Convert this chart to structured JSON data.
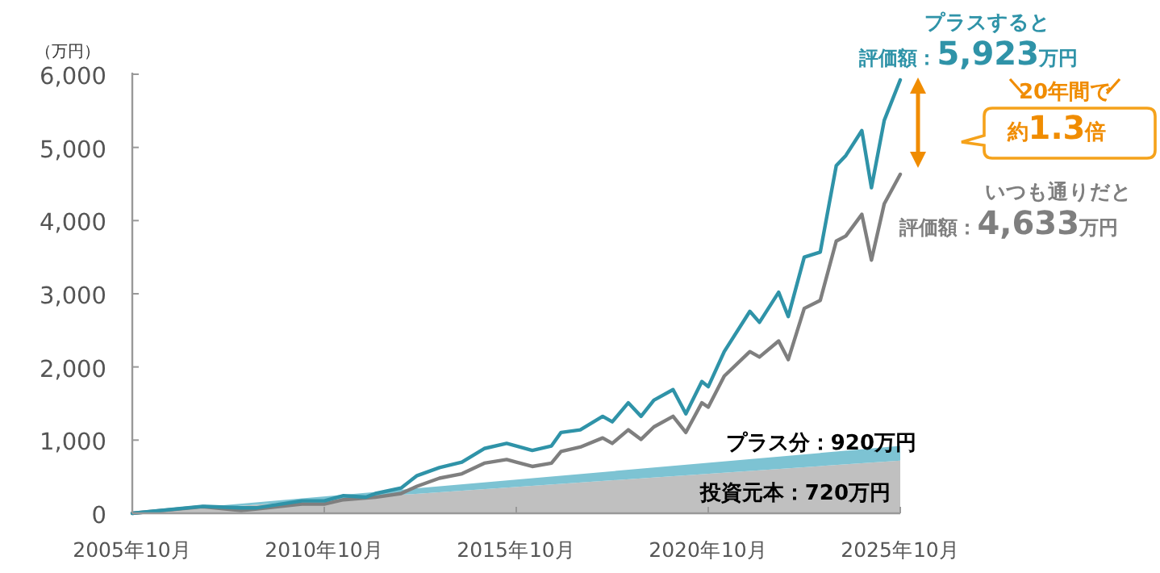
{
  "chart_data": {
    "type": "line",
    "ylabel": "（万円）",
    "stacked": true,
    "xlim": [
      "2005-10",
      "2025-10"
    ],
    "xticks": [
      {
        "value": "2005-10",
        "label": "2005年10月"
      },
      {
        "value": "2010-10",
        "label": "2010年10月"
      },
      {
        "value": "2015-10",
        "label": "2015年10月"
      },
      {
        "value": "2020-10",
        "label": "2020年10月"
      },
      {
        "value": "2025-10",
        "label": "2025年10月"
      }
    ],
    "ylim": [
      0,
      6000
    ],
    "yticks": [
      {
        "value": 0,
        "label": "0"
      },
      {
        "value": 1000,
        "label": "1,000"
      },
      {
        "value": 2000,
        "label": "2,000"
      },
      {
        "value": 3000,
        "label": "3,000"
      },
      {
        "value": 4000,
        "label": "4,000"
      },
      {
        "value": 5000,
        "label": "5,000"
      },
      {
        "value": 6000,
        "label": "6,000"
      }
    ],
    "series": [
      {
        "type": "area",
        "color": "#c0c0c0",
        "x": [
          "2005-10",
          "2025-10"
        ],
        "values": [
          0,
          720
        ]
      },
      {
        "type": "area",
        "color": "#7dc3d3",
        "x": [
          "2005-10",
          "2025-10"
        ],
        "values": [
          0,
          200
        ]
      },
      {
        "name": "いつも通りだと",
        "color": "#7f7f7f",
        "x": [
          "2005-10",
          "2007-08",
          "2008-08",
          "2009-01",
          "2010-03",
          "2010-10",
          "2011-04",
          "2012-02",
          "2012-10",
          "2013-03",
          "2013-10",
          "2014-05",
          "2014-12",
          "2015-07",
          "2015-10",
          "2016-03",
          "2016-09",
          "2016-12",
          "2017-06",
          "2018-01",
          "2018-04",
          "2018-09",
          "2019-01",
          "2019-05",
          "2019-11",
          "2020-03",
          "2020-08",
          "2020-10",
          "2021-03",
          "2021-11",
          "2022-02",
          "2022-08",
          "2022-11",
          "2023-04",
          "2023-09",
          "2024-02",
          "2024-05",
          "2024-10",
          "2025-01",
          "2025-05",
          "2025-10"
        ],
        "values": [
          0,
          90,
          37,
          60,
          125,
          125,
          185,
          220,
          270,
          370,
          480,
          540,
          685,
          735,
          700,
          640,
          685,
          845,
          905,
          1030,
          955,
          1140,
          1010,
          1180,
          1325,
          1105,
          1510,
          1450,
          1875,
          2210,
          2135,
          2355,
          2100,
          2800,
          2910,
          3720,
          3790,
          4085,
          3460,
          4230,
          4633
        ]
      },
      {
        "name": "プラスすると",
        "color": "#2f93a8",
        "x": [
          "2005-10",
          "2007-08",
          "2008-08",
          "2009-01",
          "2010-03",
          "2010-10",
          "2011-04",
          "2011-11",
          "2012-02",
          "2012-10",
          "2013-03",
          "2013-10",
          "2014-05",
          "2014-12",
          "2015-07",
          "2015-10",
          "2016-03",
          "2016-09",
          "2016-12",
          "2017-06",
          "2018-01",
          "2018-04",
          "2018-09",
          "2019-01",
          "2019-05",
          "2019-11",
          "2020-03",
          "2020-08",
          "2020-10",
          "2021-03",
          "2021-11",
          "2022-02",
          "2022-08",
          "2022-11",
          "2023-04",
          "2023-09",
          "2024-02",
          "2024-05",
          "2024-10",
          "2025-01",
          "2025-05",
          "2025-10"
        ],
        "values": [
          0,
          95,
          75,
          75,
          170,
          170,
          240,
          220,
          270,
          345,
          515,
          625,
          700,
          885,
          955,
          920,
          860,
          920,
          1105,
          1140,
          1325,
          1250,
          1510,
          1325,
          1545,
          1690,
          1360,
          1800,
          1730,
          2210,
          2760,
          2610,
          3020,
          2690,
          3500,
          3570,
          4750,
          4890,
          5230,
          4450,
          5370,
          5923
        ]
      }
    ],
    "annotations": [
      {
        "text": "評価額：5,923万円",
        "x": "2025-10",
        "y": 5923
      },
      {
        "text": "評価額：4,633万円",
        "x": "2025-10",
        "y": 4633
      },
      "20年間で",
      "約1.3倍",
      {
        "text": "プラス分：920万円",
        "x": "2025-10",
        "y": 920
      },
      {
        "text": "投資元本：720万円",
        "x": "2025-10",
        "y": 720
      }
    ]
  }
}
